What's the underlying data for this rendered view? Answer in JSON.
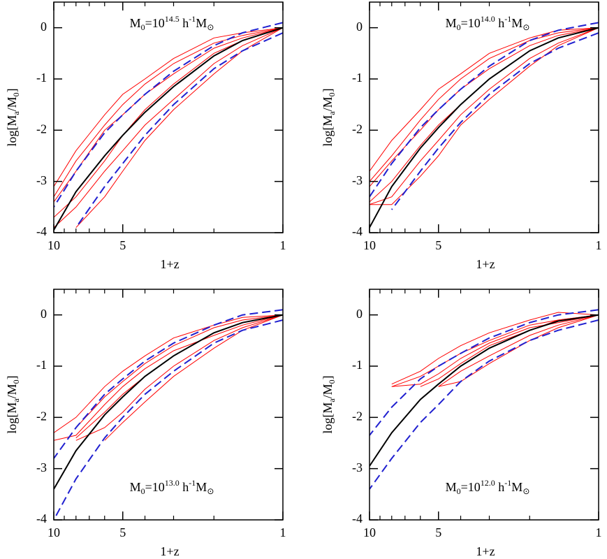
{
  "chart_data": [
    {
      "type": "line",
      "xscale": "log",
      "xlim": [
        10,
        1
      ],
      "xticks": [
        10,
        5,
        1
      ],
      "xminor": [
        9,
        8,
        7,
        6,
        4,
        3,
        2
      ],
      "ylim": [
        -4,
        0.5
      ],
      "yticks": [
        -4,
        -3,
        -2,
        -1,
        0
      ],
      "xlabel": "1+z",
      "ylabel": [
        "log[M",
        "a",
        "/M",
        "0",
        "]"
      ],
      "annotation": [
        "M",
        "0",
        "=10",
        "14.5",
        " h",
        "-1",
        "M",
        "⊙"
      ],
      "annotation_position": "top",
      "x": [
        1,
        1.5,
        2,
        3,
        4,
        5,
        6,
        8,
        10
      ],
      "series": [
        {
          "color": "#ff0000",
          "values": [
            0,
            -0.2,
            -0.4,
            -0.9,
            -1.3,
            -1.7,
            -2.0,
            -2.8,
            -3.4
          ]
        },
        {
          "color": "#ff0000",
          "values": [
            0,
            -0.35,
            -0.7,
            -1.4,
            -1.9,
            -2.4,
            -2.8,
            -3.5,
            -3.9
          ]
        },
        {
          "color": "#ff0000",
          "values": [
            0,
            -0.15,
            -0.3,
            -0.7,
            -1.1,
            -1.5,
            -1.9,
            -2.6,
            -3.3
          ]
        },
        {
          "color": "#ff0000",
          "values": [
            0,
            -0.45,
            -0.9,
            -1.6,
            -2.2,
            -2.8,
            -3.3,
            -3.9,
            null
          ]
        },
        {
          "color": "#ff0000",
          "values": [
            0,
            -0.25,
            -0.5,
            -1.1,
            -1.6,
            -2.1,
            -2.6,
            -3.3,
            -3.7
          ]
        },
        {
          "color": "#ff0000",
          "values": [
            0,
            -0.1,
            -0.2,
            -0.6,
            -1.0,
            -1.3,
            -1.7,
            -2.4,
            -3.1
          ]
        },
        {
          "color": "#000000",
          "values": [
            0,
            -0.25,
            -0.55,
            -1.15,
            -1.65,
            -2.1,
            -2.5,
            -3.2,
            -3.95
          ]
        },
        {
          "color": "#2020d0",
          "dashed": true,
          "values": [
            0.1,
            -0.1,
            -0.35,
            -0.85,
            -1.3,
            -1.7,
            -2.05,
            -2.8,
            -3.5
          ]
        },
        {
          "color": "#2020d0",
          "dashed": true,
          "values": [
            -0.1,
            -0.45,
            -0.8,
            -1.5,
            -2.1,
            -2.65,
            -3.1,
            -3.9,
            null
          ]
        }
      ]
    },
    {
      "type": "line",
      "xscale": "log",
      "xlim": [
        10,
        1
      ],
      "xticks": [
        10,
        5,
        1
      ],
      "xminor": [
        9,
        8,
        7,
        6,
        4,
        3,
        2
      ],
      "ylim": [
        -4,
        0.5
      ],
      "yticks": [
        -4,
        -3,
        -2,
        -1,
        0
      ],
      "xlabel": "1+z",
      "ylabel": [
        "log[M",
        "a",
        "/M",
        "0",
        "]"
      ],
      "annotation": [
        "M",
        "0",
        "=10",
        "14.0",
        " h",
        "-1",
        "M",
        "⊙"
      ],
      "annotation_position": "top",
      "x": [
        1,
        1.5,
        2,
        3,
        4,
        5,
        6,
        8,
        10
      ],
      "series": [
        {
          "color": "#ff0000",
          "values": [
            0,
            -0.15,
            -0.35,
            -0.8,
            -1.2,
            -1.6,
            -2.0,
            -2.6,
            -3.1
          ]
        },
        {
          "color": "#ff0000",
          "values": [
            0,
            -0.3,
            -0.6,
            -1.2,
            -1.7,
            -2.2,
            -2.6,
            -3.3,
            -3.45
          ]
        },
        {
          "color": "#ff0000",
          "values": [
            0,
            -0.1,
            -0.25,
            -0.6,
            -1.0,
            -1.4,
            -1.8,
            -2.5,
            -3.0
          ]
        },
        {
          "color": "#ff0000",
          "values": [
            0,
            -0.35,
            -0.75,
            -1.4,
            -1.9,
            -2.5,
            -2.9,
            -3.45,
            -3.45
          ]
        },
        {
          "color": "#ff0000",
          "values": [
            0,
            -0.2,
            -0.45,
            -1.0,
            -1.5,
            -1.9,
            -2.3,
            -3.0,
            -3.4
          ]
        },
        {
          "color": "#ff0000",
          "values": [
            0,
            -0.05,
            -0.2,
            -0.5,
            -0.9,
            -1.2,
            -1.6,
            -2.2,
            -2.8
          ]
        },
        {
          "color": "#000000",
          "values": [
            0,
            -0.2,
            -0.45,
            -1.0,
            -1.5,
            -1.95,
            -2.35,
            -3.1,
            -3.9
          ]
        },
        {
          "color": "#2020d0",
          "dashed": true,
          "values": [
            0.1,
            -0.05,
            -0.25,
            -0.75,
            -1.2,
            -1.6,
            -1.95,
            -2.65,
            -3.3
          ]
        },
        {
          "color": "#2020d0",
          "dashed": true,
          "values": [
            -0.1,
            -0.4,
            -0.7,
            -1.3,
            -1.85,
            -2.35,
            -2.8,
            -3.55,
            null
          ]
        }
      ]
    },
    {
      "type": "line",
      "xscale": "log",
      "xlim": [
        10,
        1
      ],
      "xticks": [
        10,
        5,
        1
      ],
      "xminor": [
        9,
        8,
        7,
        6,
        4,
        3,
        2
      ],
      "ylim": [
        -4,
        0.5
      ],
      "yticks": [
        -4,
        -3,
        -2,
        -1,
        0
      ],
      "xlabel": "1+z",
      "ylabel": [
        "log[M",
        "a",
        "/M",
        "0",
        "]"
      ],
      "annotation": [
        "M",
        "0",
        "=10",
        "13.0",
        " h",
        "-1",
        "M",
        "⊙"
      ],
      "annotation_position": "bottom",
      "x": [
        1,
        1.5,
        2,
        3,
        4,
        5,
        6,
        8,
        10
      ],
      "series": [
        {
          "color": "#ff0000",
          "values": [
            0,
            -0.1,
            -0.25,
            -0.6,
            -0.95,
            -1.3,
            -1.6,
            -2.2,
            null
          ]
        },
        {
          "color": "#ff0000",
          "values": [
            0,
            -0.25,
            -0.5,
            -1.0,
            -1.45,
            -1.9,
            -2.2,
            -2.45,
            null
          ]
        },
        {
          "color": "#ff0000",
          "values": [
            0,
            -0.05,
            -0.2,
            -0.45,
            -0.8,
            -1.1,
            -1.4,
            -2.0,
            -2.3
          ]
        },
        {
          "color": "#ff0000",
          "values": [
            0,
            -0.3,
            -0.65,
            -1.2,
            -1.7,
            -2.1,
            -2.45,
            null,
            null
          ]
        },
        {
          "color": "#ff0000",
          "values": [
            0,
            -0.15,
            -0.35,
            -0.8,
            -1.2,
            -1.55,
            -1.9,
            -2.4,
            null
          ]
        },
        {
          "color": "#ff0000",
          "values": [
            0,
            -0.2,
            -0.4,
            -0.7,
            -1.05,
            -1.4,
            -1.75,
            -2.35,
            -2.45
          ]
        },
        {
          "color": "#000000",
          "values": [
            0,
            -0.15,
            -0.35,
            -0.8,
            -1.2,
            -1.6,
            -1.95,
            -2.65,
            -3.4
          ]
        },
        {
          "color": "#2020d0",
          "dashed": true,
          "values": [
            0.1,
            0,
            -0.2,
            -0.55,
            -0.9,
            -1.25,
            -1.55,
            -2.2,
            -2.8
          ]
        },
        {
          "color": "#2020d0",
          "dashed": true,
          "values": [
            -0.1,
            -0.3,
            -0.55,
            -1.1,
            -1.55,
            -2.0,
            -2.4,
            -3.2,
            -4.0
          ]
        }
      ]
    },
    {
      "type": "line",
      "xscale": "log",
      "xlim": [
        10,
        1
      ],
      "xticks": [
        10,
        5,
        1
      ],
      "xminor": [
        9,
        8,
        7,
        6,
        4,
        3,
        2
      ],
      "ylim": [
        -4,
        0.5
      ],
      "yticks": [
        -4,
        -3,
        -2,
        -1,
        0
      ],
      "xlabel": "1+z",
      "ylabel": [
        "log[M",
        "a",
        "/M",
        "0",
        "]"
      ],
      "annotation": [
        "M",
        "0",
        "=10",
        "12.0",
        " h",
        "-1",
        "M",
        "⊙"
      ],
      "annotation_position": "bottom",
      "x": [
        1,
        1.5,
        2,
        3,
        4,
        5,
        6,
        8,
        10
      ],
      "series": [
        {
          "color": "#ff0000",
          "values": [
            0,
            -0.1,
            -0.2,
            -0.5,
            -0.75,
            -1.0,
            -1.2,
            -1.4,
            null
          ]
        },
        {
          "color": "#ff0000",
          "values": [
            0,
            -0.2,
            -0.4,
            -0.8,
            -1.1,
            -1.4,
            null,
            null,
            null
          ]
        },
        {
          "color": "#ff0000",
          "values": [
            0,
            0.05,
            -0.1,
            -0.35,
            -0.6,
            -0.85,
            -1.1,
            -1.35,
            null
          ]
        },
        {
          "color": "#ff0000",
          "values": [
            0,
            -0.25,
            -0.5,
            -0.95,
            -1.3,
            -1.4,
            null,
            null,
            null
          ]
        },
        {
          "color": "#ff0000",
          "values": [
            0,
            -0.1,
            -0.3,
            -0.6,
            -0.95,
            -1.25,
            -1.4,
            null,
            null
          ]
        },
        {
          "color": "#ff0000",
          "values": [
            0,
            -0.15,
            -0.25,
            -0.55,
            -0.85,
            -1.15,
            -1.35,
            -1.4,
            null
          ]
        },
        {
          "color": "#000000",
          "values": [
            0,
            -0.12,
            -0.3,
            -0.65,
            -1.0,
            -1.35,
            -1.65,
            -2.3,
            -2.95
          ]
        },
        {
          "color": "#2020d0",
          "dashed": true,
          "values": [
            0.1,
            0,
            -0.15,
            -0.45,
            -0.75,
            -1.0,
            -1.25,
            -1.8,
            -2.35
          ]
        },
        {
          "color": "#2020d0",
          "dashed": true,
          "values": [
            -0.1,
            -0.3,
            -0.5,
            -0.9,
            -1.3,
            -1.75,
            -2.1,
            -2.8,
            -3.4
          ]
        }
      ]
    }
  ]
}
